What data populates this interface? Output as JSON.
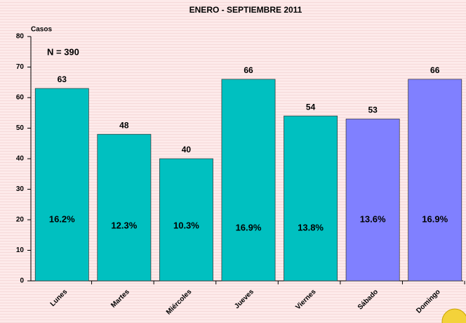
{
  "chart_data": {
    "type": "bar",
    "title": "ENERO - SEPTIEMBRE 2011",
    "y_label": "Casos",
    "annotation": "N = 390",
    "categories": [
      "Lunes",
      "Martes",
      "Miércoles",
      "Jueves",
      "Viernes",
      "Sábado",
      "Domingo"
    ],
    "values": [
      63,
      48,
      40,
      66,
      54,
      53,
      66
    ],
    "percent_labels": [
      "16.2%",
      "12.3%",
      "10.3%",
      "16.9%",
      "13.8%",
      "13.6%",
      "16.9%"
    ],
    "colors": [
      "#00c0c0",
      "#00c0c0",
      "#00c0c0",
      "#00c0c0",
      "#00c0c0",
      "#8080ff",
      "#8080ff"
    ],
    "ylim": [
      0,
      80
    ],
    "yticks": [
      0,
      10,
      20,
      30,
      40,
      50,
      60,
      70,
      80
    ]
  }
}
